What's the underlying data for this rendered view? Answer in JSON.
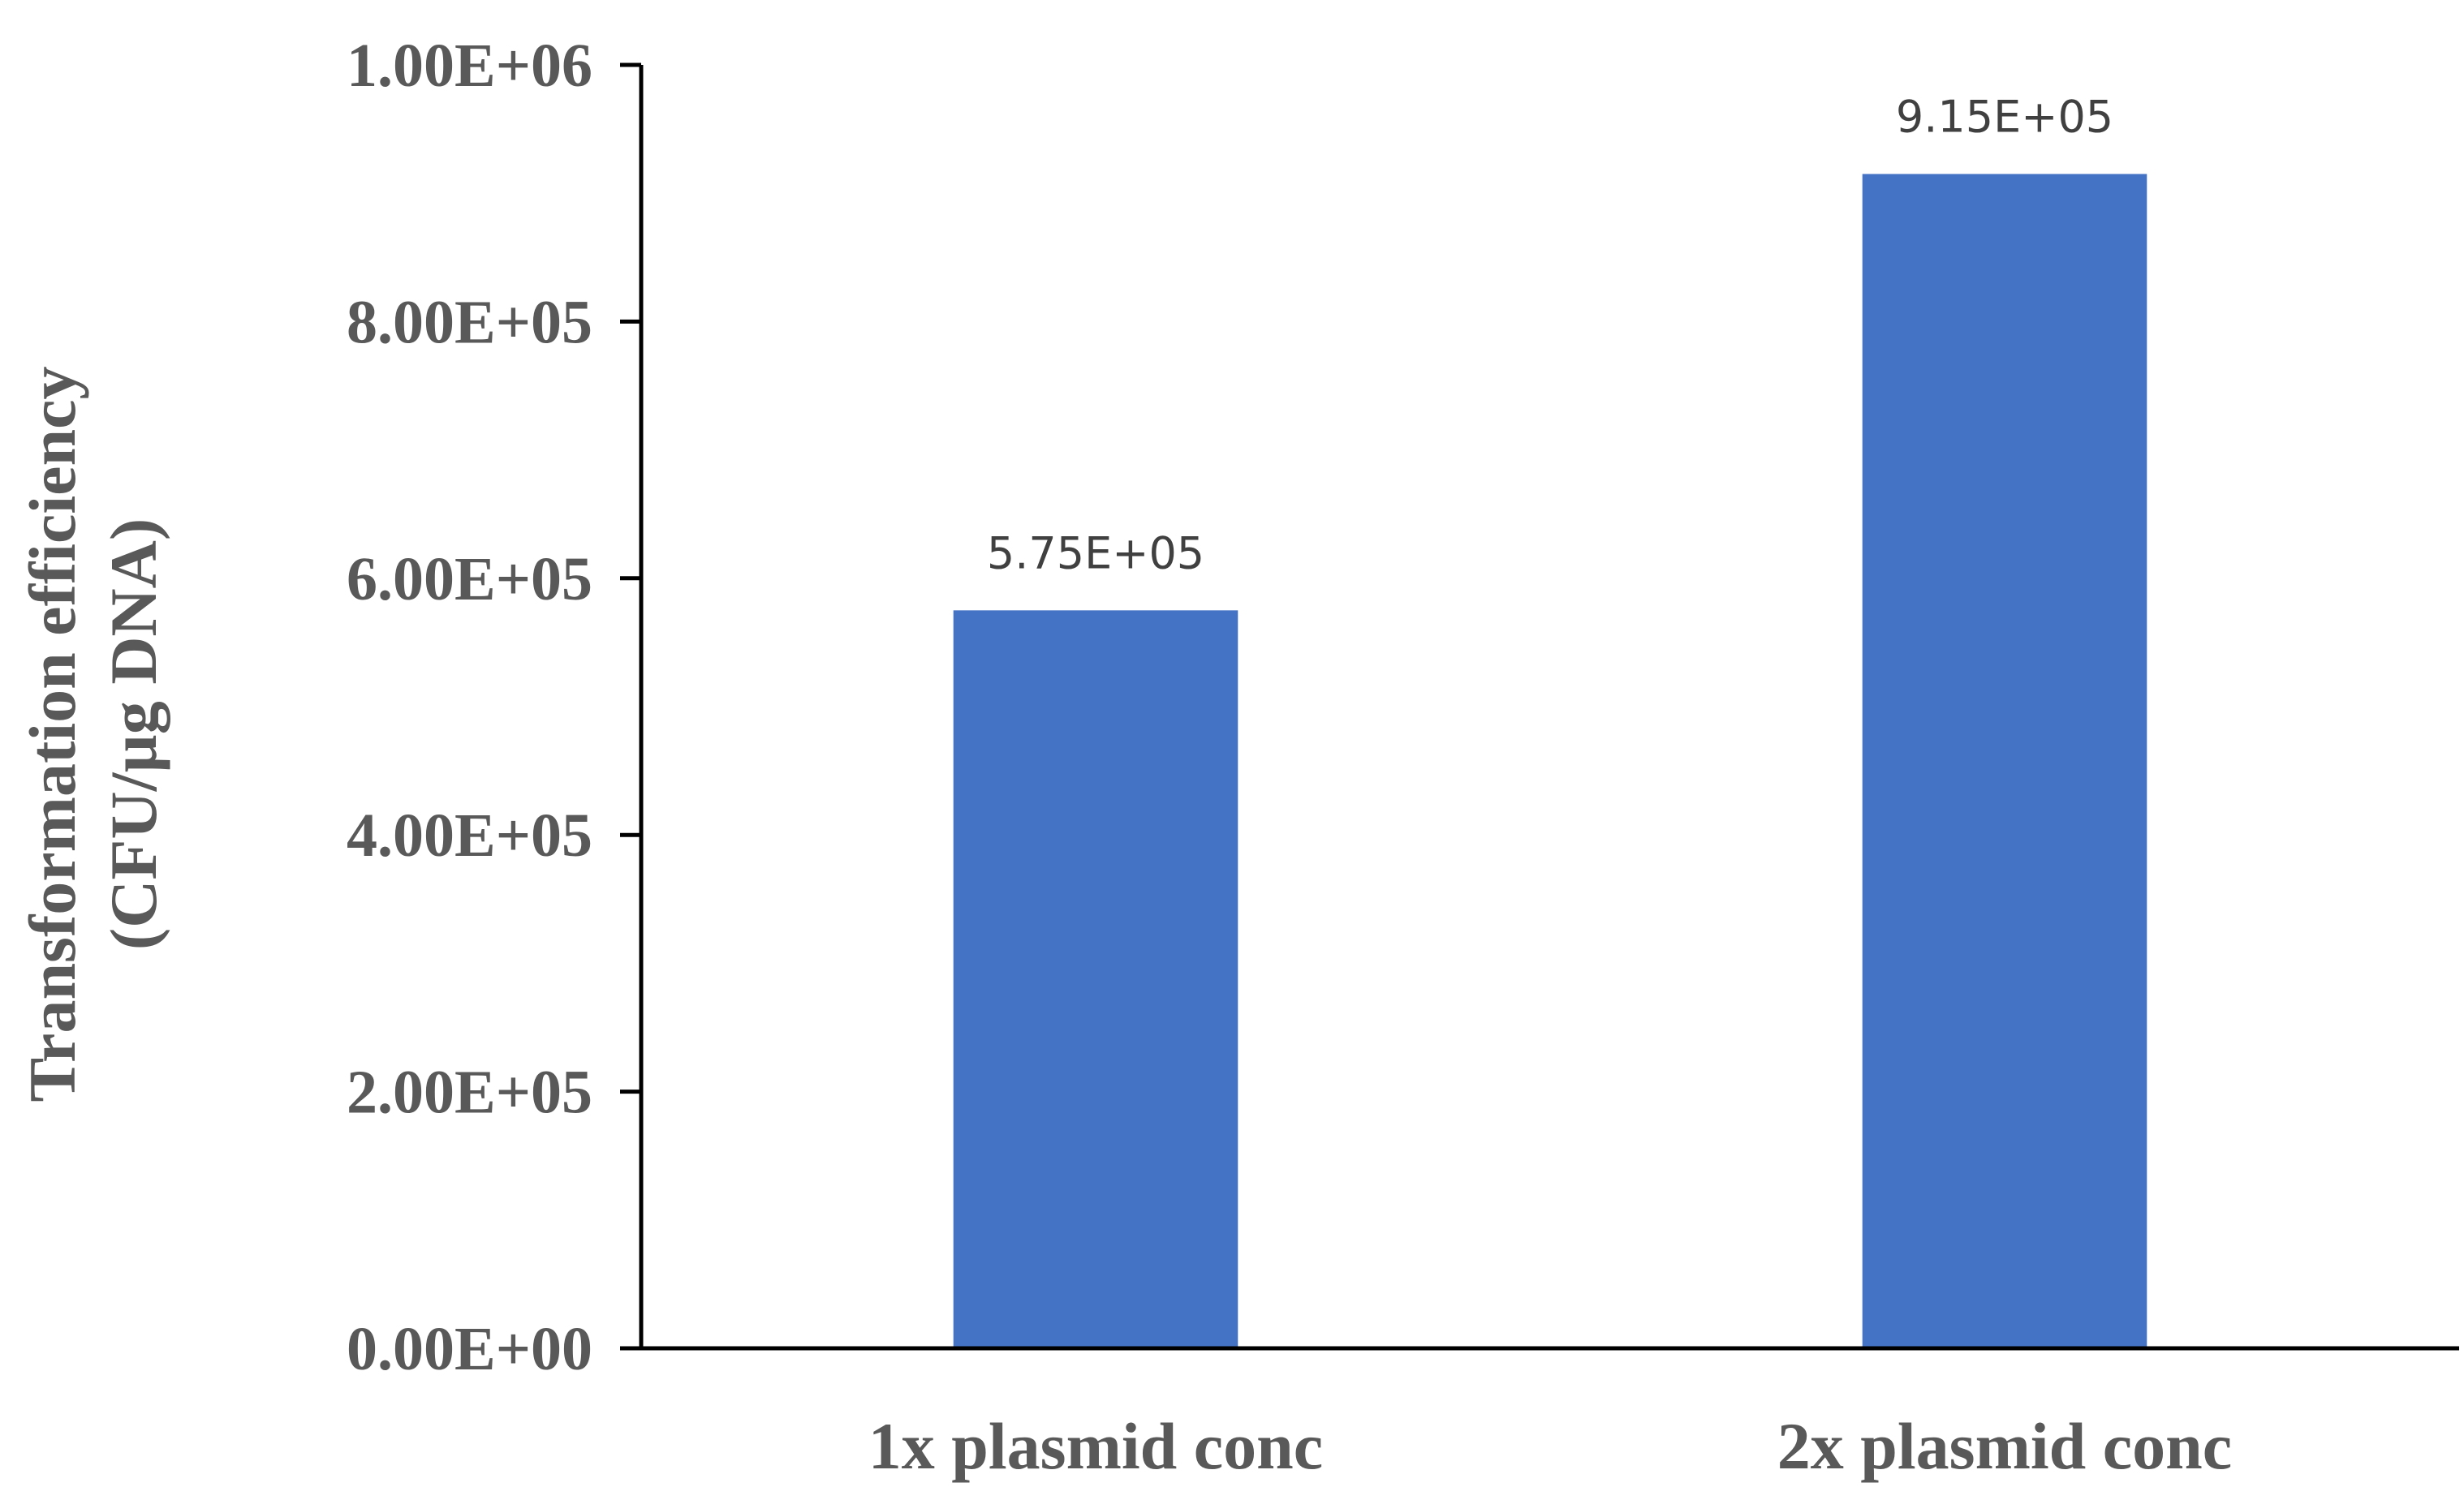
{
  "chart_data": {
    "type": "bar",
    "categories": [
      "1x plasmid conc",
      "2x plasmid conc"
    ],
    "series": [
      {
        "values": [
          575000,
          915000
        ],
        "color": "#4472C4"
      }
    ],
    "data_labels": [
      "5.75E+05",
      "9.15E+05"
    ],
    "ylabel_lines": [
      "Transformation efficiency",
      "(CFU/µg DNA)"
    ],
    "ylim": [
      0,
      1000000
    ],
    "y_ticks": [
      0,
      200000,
      400000,
      600000,
      800000,
      1000000
    ],
    "y_tick_labels": [
      "0.00E+00",
      "2.00E+05",
      "4.00E+05",
      "6.00E+05",
      "8.00E+05",
      "1.00E+06"
    ],
    "grid": false,
    "legend": "none"
  }
}
